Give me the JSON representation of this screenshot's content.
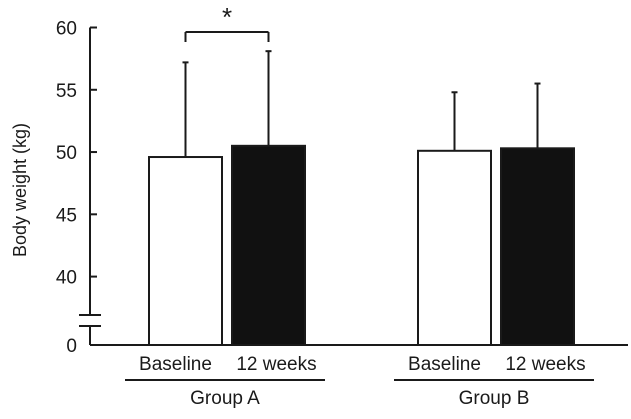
{
  "chart_data": {
    "type": "bar",
    "ylabel": "Body weight (kg)",
    "y_axis": {
      "broken": true,
      "ticks": [
        0,
        40,
        45,
        50,
        55,
        60
      ],
      "range_upper": [
        38,
        60
      ]
    },
    "groups": [
      {
        "name": "Group A",
        "bars": [
          {
            "category": "Baseline",
            "fill": "white",
            "value": 49.6,
            "error": 7.6
          },
          {
            "category": "12 weeks",
            "fill": "black",
            "value": 50.5,
            "error": 7.6
          }
        ],
        "significance": "*"
      },
      {
        "name": "Group B",
        "bars": [
          {
            "category": "Baseline",
            "fill": "white",
            "value": 50.1,
            "error": 4.7
          },
          {
            "category": "12 weeks",
            "fill": "black",
            "value": 50.3,
            "error": 5.2
          }
        ]
      }
    ],
    "colors": {
      "baseline": "#ffffff",
      "week12": "#111111",
      "axis": "#1a1a1a"
    },
    "legend": "none",
    "grid": false
  }
}
